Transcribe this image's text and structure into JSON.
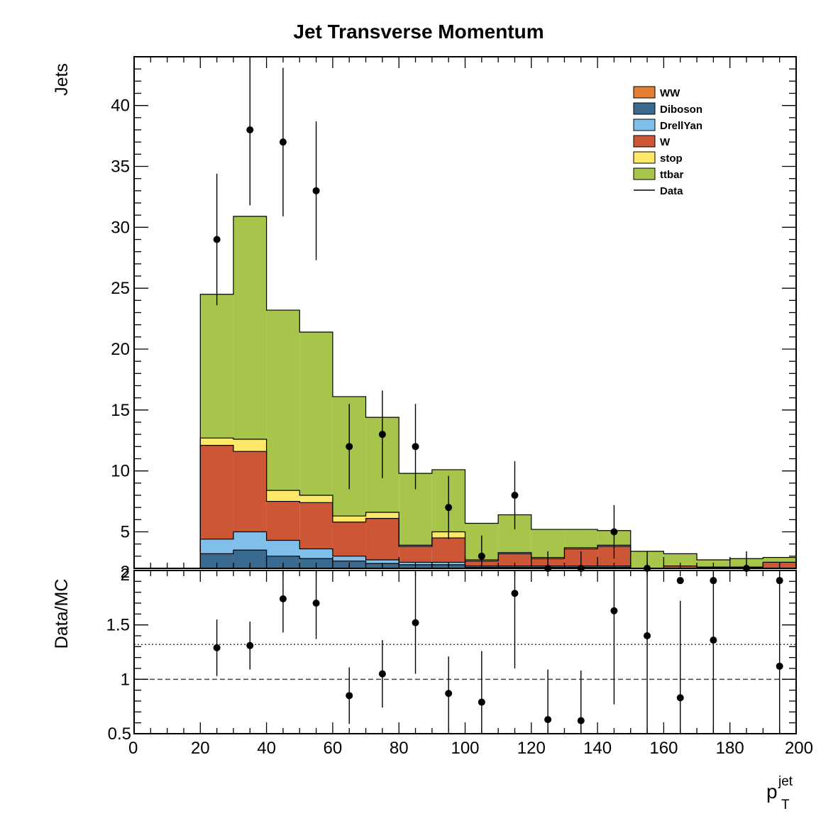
{
  "chart_data": {
    "type": "bar",
    "title": "Jet Transverse Momentum",
    "x_title_main": "p",
    "x_title_sup": "jet",
    "x_title_sub": "T",
    "upper": {
      "ylabel": "Jets",
      "ylim": [
        2,
        44
      ],
      "ytick_values": [
        5,
        10,
        15,
        20,
        25,
        30,
        35,
        40
      ],
      "ytick_labels": [
        "5",
        "10",
        "15",
        "20",
        "25",
        "30",
        "35",
        "40"
      ],
      "ytick_bottom_label": "2"
    },
    "lower": {
      "ylabel": "Data/MC",
      "ylim": [
        0.5,
        2
      ],
      "ytick_values": [
        1,
        1.5,
        2
      ],
      "ytick_labels": [
        "1",
        "1.5",
        "2"
      ],
      "ytick_bottom_label": "0.5",
      "reference_dashed": 1.0,
      "reference_dotted": 1.32
    },
    "xlim": [
      0,
      200
    ],
    "xtick_values": [
      0,
      20,
      40,
      60,
      80,
      100,
      120,
      140,
      160,
      180,
      200
    ],
    "xtick_labels": [
      "0",
      "20",
      "40",
      "60",
      "80",
      "100",
      "120",
      "140",
      "160",
      "180",
      "200"
    ],
    "bin_edges": [
      0,
      10,
      20,
      30,
      40,
      50,
      60,
      70,
      80,
      90,
      100,
      110,
      120,
      130,
      140,
      150,
      160,
      170,
      180,
      190,
      200
    ],
    "stack_series": [
      {
        "name": "Diboson",
        "color": "#3a6a8f",
        "values": [
          0,
          0,
          1.2,
          1.5,
          1.0,
          0.8,
          0.6,
          0.4,
          0.3,
          0.3,
          0.1,
          0.1,
          0.1,
          0.1,
          0.1,
          0,
          0,
          0,
          0,
          0
        ]
      },
      {
        "name": "DrellYan",
        "color": "#7fbfea",
        "values": [
          0,
          0,
          1.2,
          1.5,
          1.3,
          0.8,
          0.4,
          0.3,
          0.2,
          0.2,
          0.1,
          0.1,
          0.1,
          0.1,
          0.1,
          0,
          0,
          0,
          0,
          0
        ]
      },
      {
        "name": "W",
        "color": "#cc5636",
        "values": [
          0,
          0,
          7.7,
          6.6,
          3.2,
          3.8,
          2.8,
          3.4,
          1.3,
          2.0,
          0.4,
          1.0,
          0.6,
          1.4,
          1.6,
          0,
          0.2,
          0.1,
          0.1,
          0.5
        ]
      },
      {
        "name": "stop",
        "color": "#fde86a",
        "values": [
          0,
          0,
          0.6,
          1.0,
          0.9,
          0.6,
          0.5,
          0.5,
          0.1,
          0.5,
          0.1,
          0.1,
          0.1,
          0.1,
          0.1,
          0,
          0,
          0,
          0,
          0
        ]
      },
      {
        "name": "ttbar",
        "color": "#a8c54b",
        "values": [
          0,
          0,
          11.8,
          18.3,
          14.8,
          13.4,
          9.8,
          7.8,
          5.9,
          5.1,
          3.0,
          3.1,
          2.3,
          1.5,
          1.2,
          1.4,
          1.0,
          0.6,
          0.7,
          0.4
        ]
      }
    ],
    "data_points": {
      "name": "Data",
      "x": [
        25,
        35,
        45,
        55,
        65,
        75,
        85,
        95,
        105,
        115,
        125,
        135,
        145,
        155,
        165,
        175,
        185,
        195
      ],
      "y": [
        29,
        38,
        37,
        33,
        12,
        13,
        12,
        7,
        3,
        8,
        2,
        2,
        5,
        2,
        1,
        1,
        2,
        1
      ],
      "err_low": [
        5.4,
        6.2,
        6.1,
        5.7,
        3.5,
        3.6,
        3.5,
        2.6,
        1.7,
        2.8,
        1.4,
        1.4,
        2.2,
        1.4,
        1.0,
        1.0,
        1.4,
        1.0
      ],
      "err_high": [
        5.4,
        6.2,
        6.1,
        5.7,
        3.5,
        3.6,
        3.5,
        2.6,
        1.7,
        2.8,
        1.4,
        1.4,
        2.2,
        1.4,
        1.0,
        1.0,
        1.4,
        1.0
      ]
    },
    "ratio_points": {
      "x": [
        25,
        35,
        65,
        75,
        85,
        95,
        105,
        115,
        125,
        135,
        145,
        155,
        165,
        175,
        195
      ],
      "y": [
        1.29,
        1.31,
        0.85,
        1.05,
        1.52,
        0.87,
        0.79,
        1.79,
        0.63,
        0.62,
        1.63,
        1.4,
        0.83,
        1.36,
        1.12
      ],
      "err_low": [
        0.26,
        0.22,
        0.26,
        0.31,
        0.47,
        0.34,
        0.47,
        0.69,
        0.43,
        0.44,
        0.86,
        0.99,
        0.83,
        0.99,
        1.12
      ],
      "err_high": [
        0.26,
        0.22,
        0.26,
        0.31,
        0.47,
        0.34,
        0.47,
        0.69,
        0.46,
        0.46,
        0.86,
        0.99,
        0.89,
        0.99,
        1.12
      ]
    },
    "ratio_offscale_x": [
      45,
      55
    ],
    "ratio_offscale_y": [
      1.74,
      1.7
    ],
    "ratio_offscale_err": [
      0.31,
      0.33
    ],
    "legend": {
      "placement": "top-right",
      "entries": [
        {
          "name": "WW",
          "color": "#e37e32",
          "style": "box"
        },
        {
          "name": "Diboson",
          "color": "#3a6a8f",
          "style": "box"
        },
        {
          "name": "DrellYan",
          "color": "#7fbfea",
          "style": "box"
        },
        {
          "name": "W",
          "color": "#cc5636",
          "style": "box"
        },
        {
          "name": "stop",
          "color": "#fde86a",
          "style": "box"
        },
        {
          "name": "ttbar",
          "color": "#a8c54b",
          "style": "box"
        },
        {
          "name": "Data",
          "color": "#000000",
          "style": "line"
        }
      ]
    }
  }
}
